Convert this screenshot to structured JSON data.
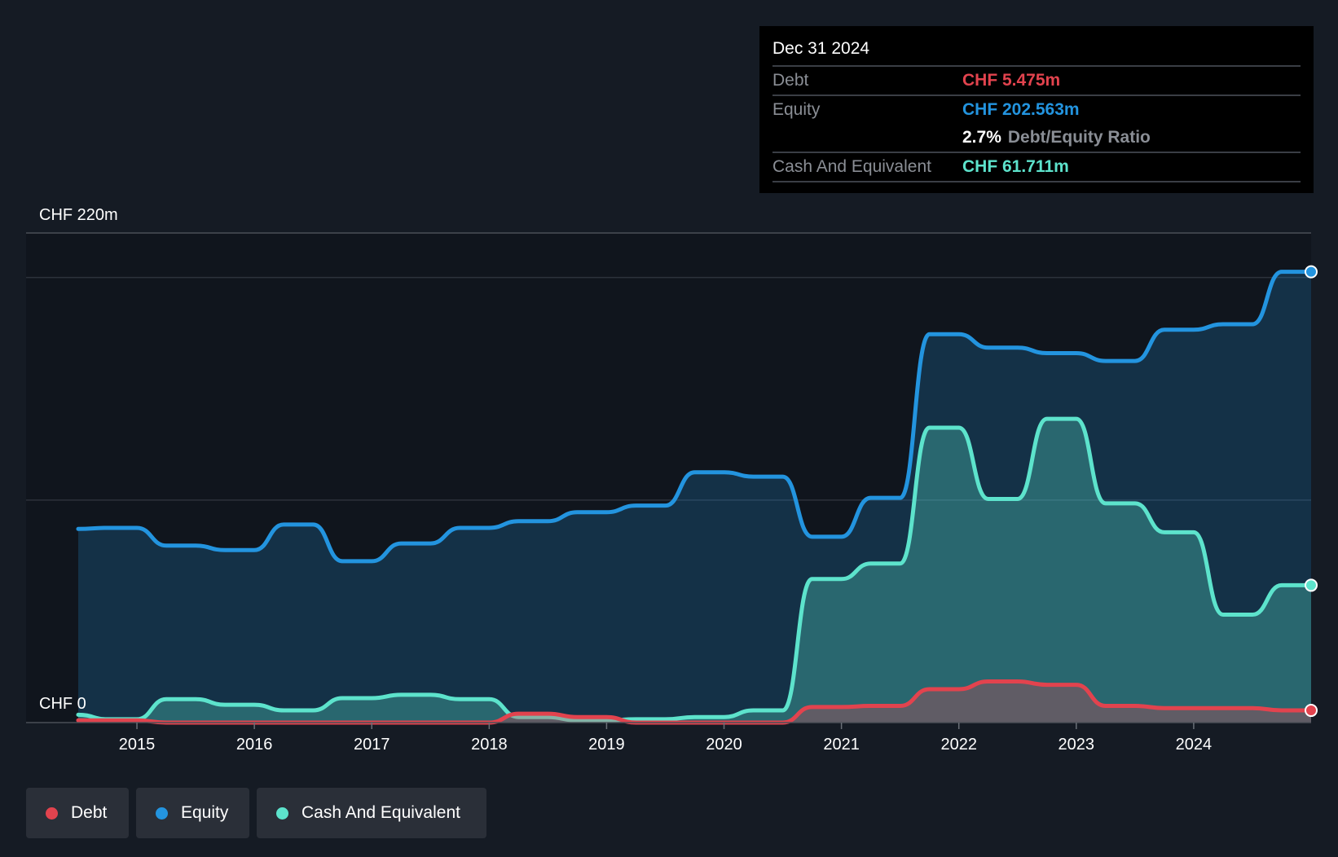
{
  "chart_data": {
    "type": "area",
    "y_top_label": "CHF 220m",
    "y_zero_label": "CHF 0",
    "ylim": [
      0,
      220
    ],
    "x_range": [
      2014.5,
      2025.0
    ],
    "x_ticks": [
      {
        "year": 2015,
        "label": "2015"
      },
      {
        "year": 2016,
        "label": "2016"
      },
      {
        "year": 2017,
        "label": "2017"
      },
      {
        "year": 2018,
        "label": "2018"
      },
      {
        "year": 2019,
        "label": "2019"
      },
      {
        "year": 2020,
        "label": "2020"
      },
      {
        "year": 2021,
        "label": "2021"
      },
      {
        "year": 2022,
        "label": "2022"
      },
      {
        "year": 2023,
        "label": "2023"
      },
      {
        "year": 2024,
        "label": "2024"
      }
    ],
    "gridlines": [
      100,
      200
    ],
    "series": [
      {
        "name": "Equity",
        "color": "#2394df",
        "points": [
          [
            2014.5,
            87
          ],
          [
            2014.75,
            87.5
          ],
          [
            2015.0,
            87.5
          ],
          [
            2015.25,
            79.5
          ],
          [
            2015.5,
            79.5
          ],
          [
            2015.75,
            77.5
          ],
          [
            2016.0,
            77.5
          ],
          [
            2016.25,
            89
          ],
          [
            2016.5,
            89
          ],
          [
            2016.75,
            72.5
          ],
          [
            2017.0,
            72.5
          ],
          [
            2017.25,
            80.5
          ],
          [
            2017.5,
            80.5
          ],
          [
            2017.75,
            87.5
          ],
          [
            2018.0,
            87.5
          ],
          [
            2018.25,
            90.5
          ],
          [
            2018.5,
            90.5
          ],
          [
            2018.75,
            94.5
          ],
          [
            2019.0,
            94.5
          ],
          [
            2019.25,
            97.5
          ],
          [
            2019.5,
            97.5
          ],
          [
            2019.75,
            112.5
          ],
          [
            2020.0,
            112.5
          ],
          [
            2020.25,
            110.5
          ],
          [
            2020.5,
            110.5
          ],
          [
            2020.75,
            83.5
          ],
          [
            2021.0,
            83.5
          ],
          [
            2021.25,
            101
          ],
          [
            2021.5,
            101
          ],
          [
            2021.75,
            174.5
          ],
          [
            2022.0,
            174.5
          ],
          [
            2022.25,
            168.5
          ],
          [
            2022.5,
            168.5
          ],
          [
            2022.75,
            166
          ],
          [
            2023.0,
            166
          ],
          [
            2023.25,
            162.5
          ],
          [
            2023.5,
            162.5
          ],
          [
            2023.75,
            176.5
          ],
          [
            2024.0,
            176.5
          ],
          [
            2024.25,
            179
          ],
          [
            2024.5,
            179
          ],
          [
            2024.75,
            202.563
          ],
          [
            2025.0,
            202.563
          ]
        ]
      },
      {
        "name": "Cash And Equivalent",
        "color": "#5de3cc",
        "points": [
          [
            2014.5,
            3.5
          ],
          [
            2014.75,
            1.5
          ],
          [
            2015.0,
            1.5
          ],
          [
            2015.25,
            10.5
          ],
          [
            2015.5,
            10.5
          ],
          [
            2015.75,
            8
          ],
          [
            2016.0,
            8
          ],
          [
            2016.25,
            5.5
          ],
          [
            2016.5,
            5.5
          ],
          [
            2016.75,
            11
          ],
          [
            2017.0,
            11
          ],
          [
            2017.25,
            12.5
          ],
          [
            2017.5,
            12.5
          ],
          [
            2017.75,
            10.5
          ],
          [
            2018.0,
            10.5
          ],
          [
            2018.25,
            2.5
          ],
          [
            2018.5,
            2.5
          ],
          [
            2018.75,
            1
          ],
          [
            2019.0,
            1
          ],
          [
            2019.25,
            1.5
          ],
          [
            2019.5,
            1.5
          ],
          [
            2019.75,
            2.5
          ],
          [
            2020.0,
            2.5
          ],
          [
            2020.25,
            5.5
          ],
          [
            2020.5,
            5.5
          ],
          [
            2020.75,
            64.5
          ],
          [
            2021.0,
            64.5
          ],
          [
            2021.25,
            71.5
          ],
          [
            2021.5,
            71.5
          ],
          [
            2021.75,
            132.5
          ],
          [
            2022.0,
            132.5
          ],
          [
            2022.25,
            100.5
          ],
          [
            2022.5,
            100.5
          ],
          [
            2022.75,
            136.5
          ],
          [
            2023.0,
            136.5
          ],
          [
            2023.25,
            98.5
          ],
          [
            2023.5,
            98.5
          ],
          [
            2023.75,
            85.5
          ],
          [
            2024.0,
            85.5
          ],
          [
            2024.25,
            48.5
          ],
          [
            2024.5,
            48.5
          ],
          [
            2024.75,
            61.711
          ],
          [
            2025.0,
            61.711
          ]
        ]
      },
      {
        "name": "Debt",
        "color": "#e2434e",
        "points": [
          [
            2014.5,
            1
          ],
          [
            2015.0,
            1
          ],
          [
            2015.25,
            0
          ],
          [
            2017.75,
            0
          ],
          [
            2018.0,
            0
          ],
          [
            2018.25,
            4
          ],
          [
            2018.5,
            4
          ],
          [
            2018.75,
            2.5
          ],
          [
            2019.0,
            2.5
          ],
          [
            2019.25,
            0
          ],
          [
            2020.5,
            0
          ],
          [
            2020.75,
            7
          ],
          [
            2021.0,
            7
          ],
          [
            2021.25,
            7.5
          ],
          [
            2021.5,
            7.5
          ],
          [
            2021.75,
            15
          ],
          [
            2022.0,
            15
          ],
          [
            2022.25,
            18.5
          ],
          [
            2022.5,
            18.5
          ],
          [
            2022.75,
            17
          ],
          [
            2023.0,
            17
          ],
          [
            2023.25,
            7.5
          ],
          [
            2023.5,
            7.5
          ],
          [
            2023.75,
            6.5
          ],
          [
            2024.0,
            6.5
          ],
          [
            2024.5,
            6.5
          ],
          [
            2024.75,
            5.475
          ],
          [
            2025.0,
            5.475
          ]
        ]
      }
    ]
  },
  "tooltip": {
    "date": "Dec 31 2024",
    "debt_label": "Debt",
    "debt_value": "CHF 5.475m",
    "equity_label": "Equity",
    "equity_value": "CHF 202.563m",
    "ratio_value": "2.7%",
    "ratio_label": "Debt/Equity Ratio",
    "cash_label": "Cash And Equivalent",
    "cash_value": "CHF 61.711m"
  },
  "legend": {
    "debt": "Debt",
    "equity": "Equity",
    "cash": "Cash And Equivalent"
  },
  "colors": {
    "debt": "#e2434e",
    "equity": "#2394df",
    "cash": "#5de3cc",
    "background": "#151b24",
    "plot_background": "#10151d"
  }
}
